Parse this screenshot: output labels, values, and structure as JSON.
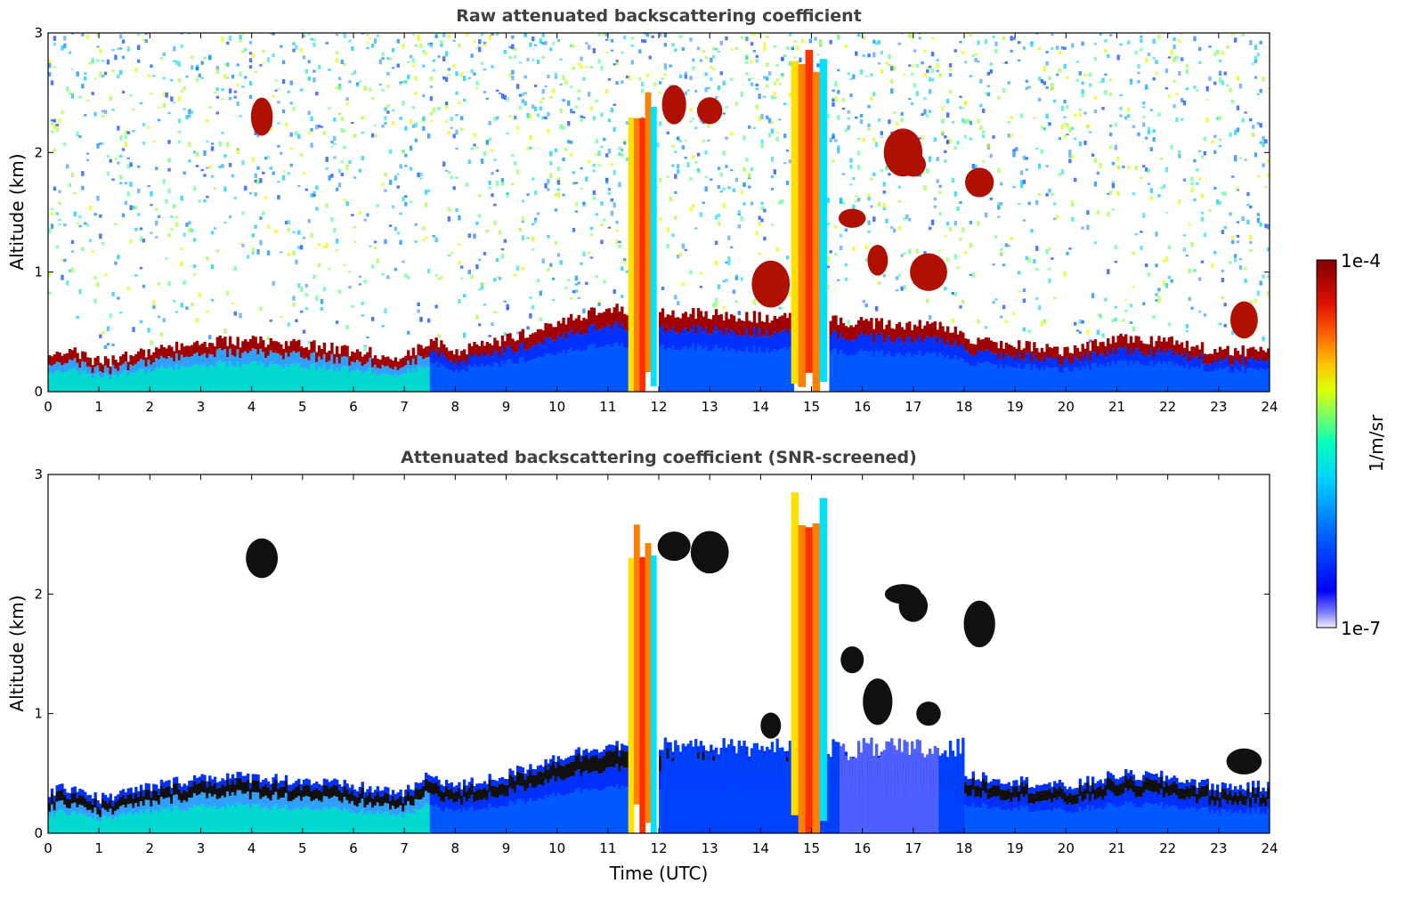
{
  "chart_data": [
    {
      "type": "heatmap",
      "title": "Raw attenuated backscattering coefficient",
      "xlabel": "",
      "ylabel": "Altitude (km)",
      "xlim": [
        0,
        24
      ],
      "ylim": [
        0,
        3
      ],
      "xticks": [
        "0",
        "1",
        "2",
        "3",
        "4",
        "5",
        "6",
        "7",
        "8",
        "9",
        "10",
        "11",
        "12",
        "13",
        "14",
        "15",
        "16",
        "17",
        "18",
        "19",
        "20",
        "21",
        "22",
        "23",
        "24"
      ],
      "yticks": [
        "0",
        "1",
        "2",
        "3"
      ],
      "features": {
        "boundary_layer_top_km": [
          [
            0,
            0.25
          ],
          [
            0.5,
            0.3
          ],
          [
            1,
            0.2
          ],
          [
            2,
            0.3
          ],
          [
            3,
            0.38
          ],
          [
            4,
            0.38
          ],
          [
            5,
            0.35
          ],
          [
            6,
            0.3
          ],
          [
            7,
            0.25
          ],
          [
            7.5,
            0.4
          ],
          [
            8,
            0.3
          ],
          [
            9,
            0.4
          ],
          [
            10,
            0.55
          ],
          [
            11,
            0.65
          ],
          [
            17.7,
            0.5
          ],
          [
            18,
            0.4
          ],
          [
            19,
            0.35
          ],
          [
            20,
            0.3
          ],
          [
            21,
            0.4
          ],
          [
            22,
            0.38
          ],
          [
            23,
            0.3
          ]
        ],
        "precipitation_shafts": [
          {
            "t0": 11.4,
            "t1": 11.95,
            "top_km": 2.6
          },
          {
            "t0": 14.6,
            "t1": 15.3,
            "top_km": 3.0
          }
        ],
        "cloud_fragments": [
          {
            "t": 12.3,
            "z": 2.4
          },
          {
            "t": 13.0,
            "z": 2.35
          },
          {
            "t": 16.8,
            "z": 2.0
          },
          {
            "t": 17.0,
            "z": 1.9
          },
          {
            "t": 18.3,
            "z": 1.75
          },
          {
            "t": 15.8,
            "z": 1.45
          },
          {
            "t": 16.3,
            "z": 1.1
          },
          {
            "t": 17.3,
            "z": 1.0
          },
          {
            "t": 14.2,
            "z": 0.9
          },
          {
            "t": 4.2,
            "z": 2.3
          },
          {
            "t": 23.5,
            "z": 0.6
          }
        ]
      }
    },
    {
      "type": "heatmap",
      "title": "Attenuated backscattering coefficient (SNR-screened)",
      "xlabel": "Time (UTC)",
      "ylabel": "Altitude (km)",
      "xlim": [
        0,
        24
      ],
      "ylim": [
        0,
        3
      ],
      "xticks": [
        "0",
        "1",
        "2",
        "3",
        "4",
        "5",
        "6",
        "7",
        "8",
        "9",
        "10",
        "11",
        "12",
        "13",
        "14",
        "15",
        "16",
        "17",
        "18",
        "19",
        "20",
        "21",
        "22",
        "23",
        "24"
      ],
      "yticks": [
        "0",
        "1",
        "2",
        "3"
      ]
    }
  ],
  "colorbar": {
    "max_label": "1e-4",
    "min_label": "1e-7",
    "unit_label": "1/m/sr",
    "scale": "log",
    "colormap": [
      "#0000a8",
      "#0000ff",
      "#0060ff",
      "#00c0ff",
      "#00ffe0",
      "#60ff90",
      "#c0ff30",
      "#ffe000",
      "#ff8000",
      "#ff2000",
      "#c00000",
      "#800000"
    ]
  }
}
